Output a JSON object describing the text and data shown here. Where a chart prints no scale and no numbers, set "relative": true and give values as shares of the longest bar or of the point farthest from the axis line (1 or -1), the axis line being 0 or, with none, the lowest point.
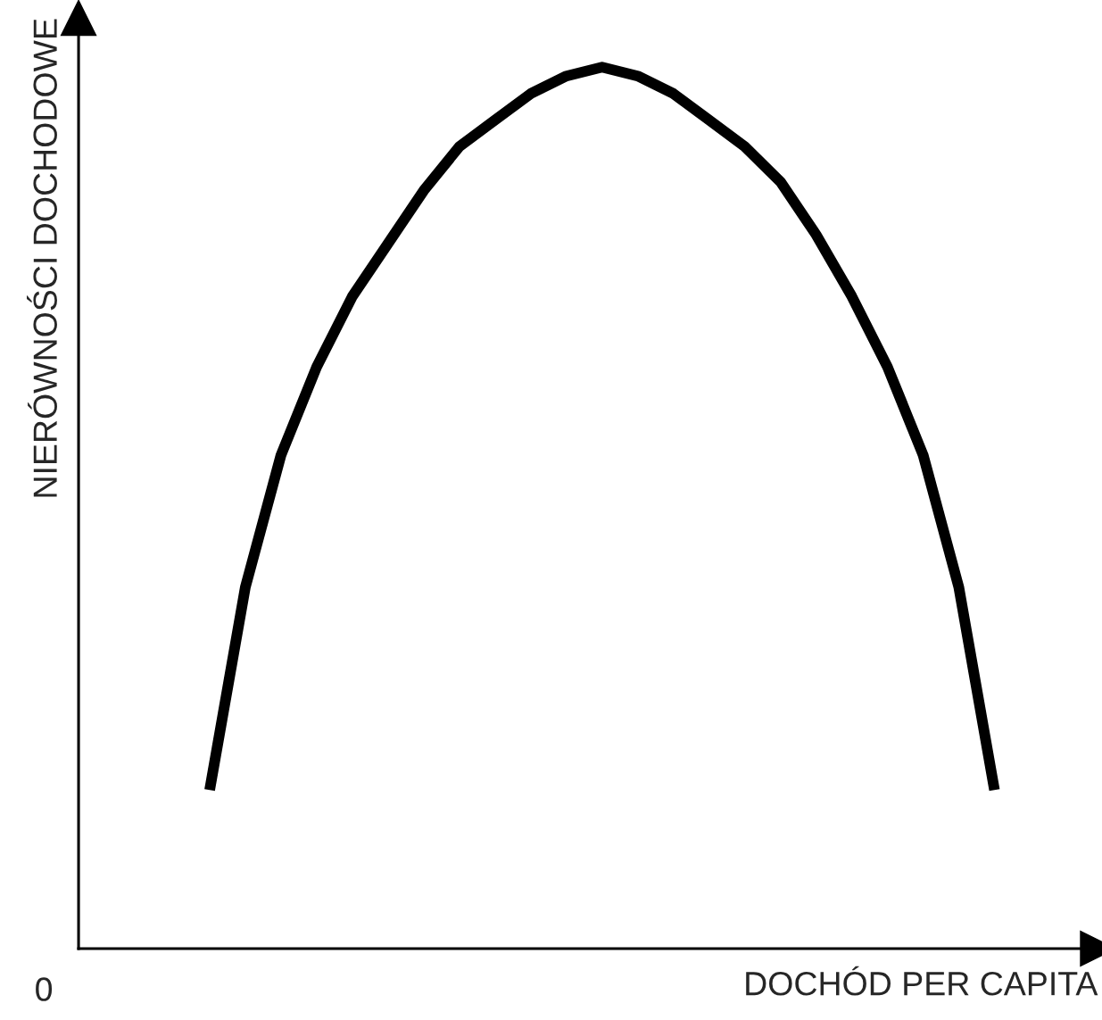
{
  "chart_data": {
    "type": "line",
    "relative": true,
    "xlabel": "DOCHÓD PER CAPITA",
    "ylabel": "NIERÓWNOŚCI DOCHODOWE",
    "annotations": [
      "0"
    ],
    "categories": [
      null,
      null,
      null,
      null,
      null,
      null,
      null,
      null,
      null,
      null,
      null,
      null,
      null,
      null,
      null,
      null,
      null,
      null,
      null,
      null,
      null,
      null,
      null
    ],
    "series": [
      {
        "color": "#000000",
        "values": [
          0.18,
          0.41,
          0.56,
          0.66,
          0.74,
          0.8,
          0.86,
          0.91,
          0.94,
          0.97,
          0.99,
          1.0,
          0.99,
          0.97,
          0.94,
          0.91,
          0.87,
          0.81,
          0.74,
          0.66,
          0.56,
          0.41,
          0.18
        ]
      }
    ],
    "tick_labels": false,
    "marker": "none",
    "line_style": "solid"
  }
}
